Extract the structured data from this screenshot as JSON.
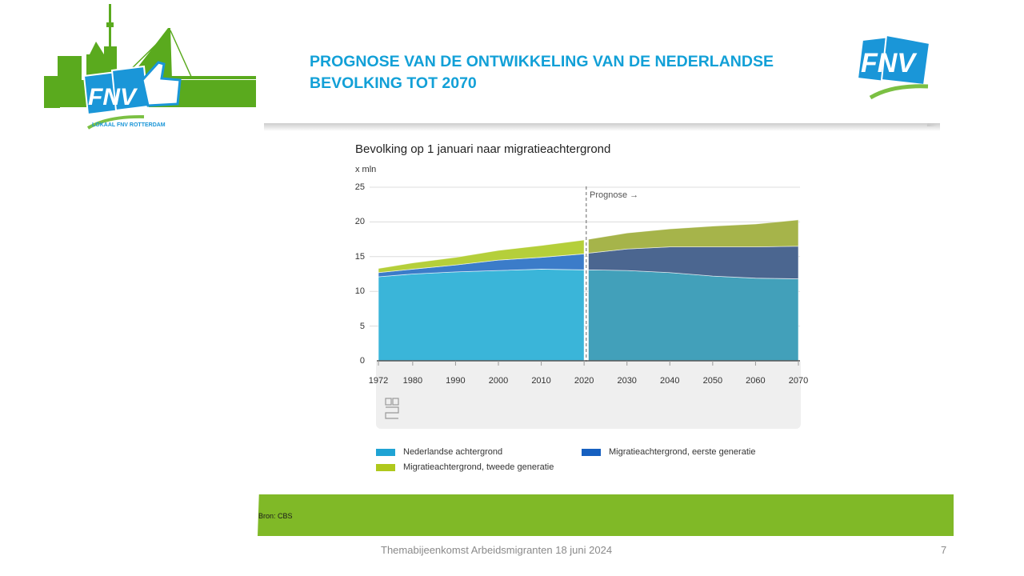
{
  "slide": {
    "title_line1": "PROGNOSE VAN DE ONTWIKKELING VAN DE NEDERLANDSE",
    "title_line2": "BEVOLKING TOT 2070",
    "logo_left_text": "FNV",
    "logo_left_caption": "LOKAAL FNV ROTTERDAM",
    "logo_right_text": "FNV",
    "source": "Bron: CBS",
    "footer": "Themabijeenkomst Arbeidsmigranten 18 juni 2024",
    "page_number": "7",
    "colors": {
      "title": "#12a0d7",
      "green": "#80b927",
      "fnv_blue": "#1a96d8"
    }
  },
  "chart_data": {
    "type": "area",
    "stacked": true,
    "title": "Bevolking op 1 januari naar migratieachtergrond",
    "ylabel": "x mln",
    "xlabel": "",
    "ylim": [
      0,
      25
    ],
    "yticks": [
      "0",
      "5",
      "10",
      "15",
      "20",
      "25"
    ],
    "xlim": [
      1972,
      2070
    ],
    "xticks": [
      "1972",
      "1980",
      "1990",
      "2000",
      "2010",
      "2020",
      "2030",
      "2040",
      "2050",
      "2060",
      "2070"
    ],
    "grid": true,
    "forecast_start": 2021,
    "forecast_label": "Prognose →",
    "legend_position": "bottom",
    "x": [
      1972,
      1980,
      1990,
      2000,
      2010,
      2020,
      2021,
      2030,
      2040,
      2050,
      2060,
      2070
    ],
    "series": [
      {
        "name": "Nederlandse achtergrond",
        "color": "#3ab5d9",
        "forecast_color": "#42a0ba",
        "values": [
          12.1,
          12.5,
          12.8,
          13.0,
          13.2,
          13.1,
          13.1,
          13.0,
          12.7,
          12.2,
          11.9,
          11.8
        ]
      },
      {
        "name": "Migratieachtergrond, eerste generatie",
        "color": "#3b7cc9",
        "forecast_color": "#4b6690",
        "values": [
          0.6,
          0.7,
          1.0,
          1.5,
          1.7,
          2.3,
          2.4,
          3.1,
          3.7,
          4.2,
          4.5,
          4.7
        ]
      },
      {
        "name": "Migratieachtergrond, tweede generatie",
        "color": "#b5cf3a",
        "forecast_color": "#a6b44a",
        "values": [
          0.6,
          0.9,
          1.1,
          1.4,
          1.7,
          2.0,
          2.0,
          2.3,
          2.6,
          3.0,
          3.3,
          3.8
        ]
      }
    ],
    "legend": [
      {
        "label": "Nederlandse achtergrond",
        "color": "#1fa3d4"
      },
      {
        "label": "Migratieachtergrond, eerste generatie",
        "color": "#1660c0"
      },
      {
        "label": "Migratieachtergrond, tweede generatie",
        "color": "#afc81c"
      }
    ]
  }
}
